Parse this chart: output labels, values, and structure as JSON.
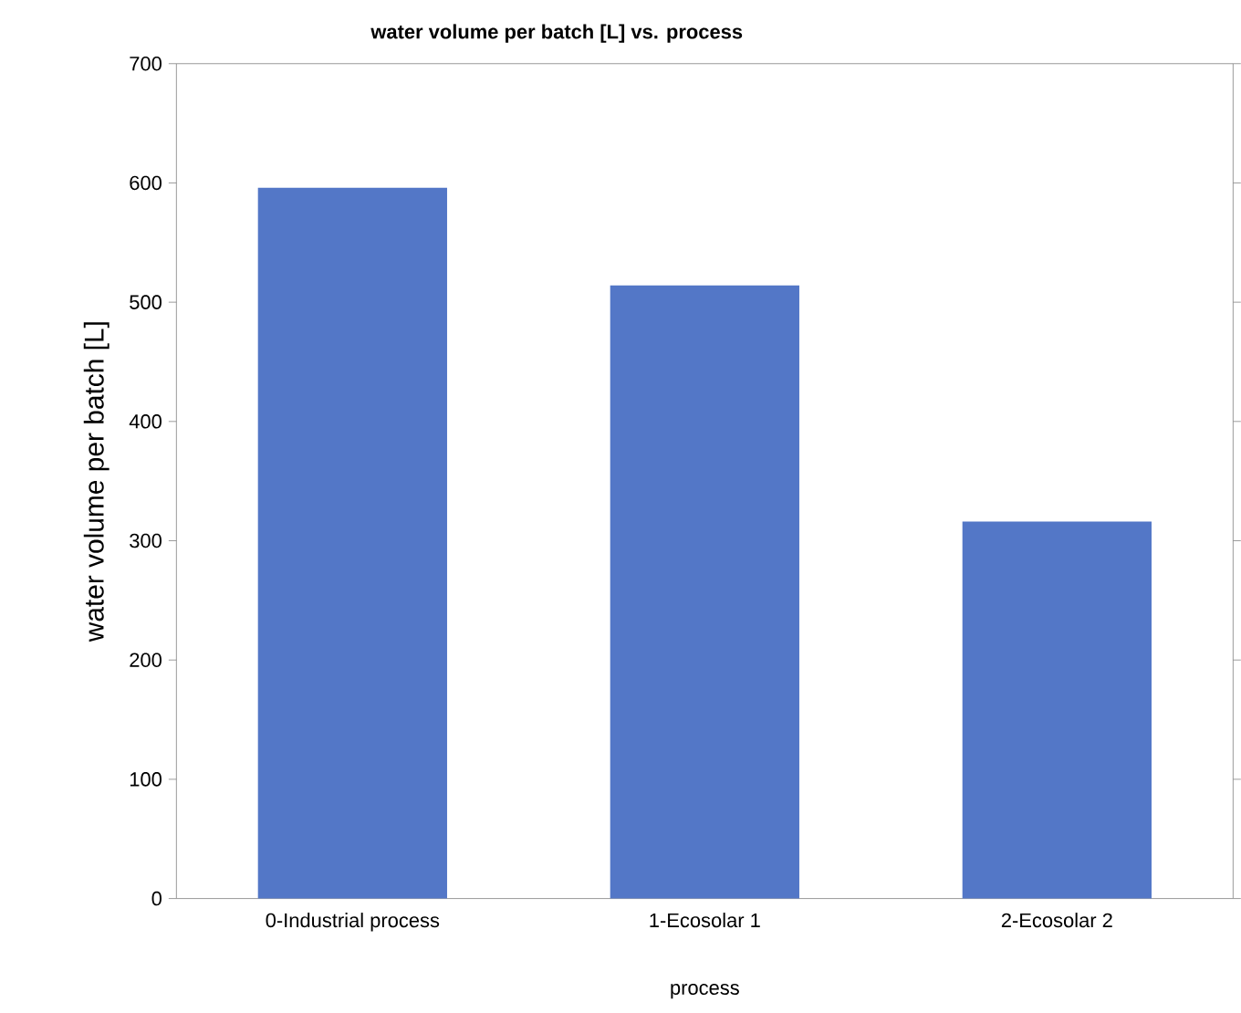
{
  "chart_data": {
    "type": "bar",
    "title": "water volume per batch [L] vs. process",
    "xlabel": "process",
    "ylabel": "water volume per batch [L]",
    "categories": [
      "0-Industrial process",
      "1-Ecosolar 1",
      "2-Ecosolar 2"
    ],
    "values": [
      596,
      514,
      316
    ],
    "color": "#5377c7",
    "ylim": [
      0,
      700
    ],
    "yticks": [
      0,
      100,
      200,
      300,
      400,
      500,
      600,
      700
    ],
    "grid": false
  }
}
